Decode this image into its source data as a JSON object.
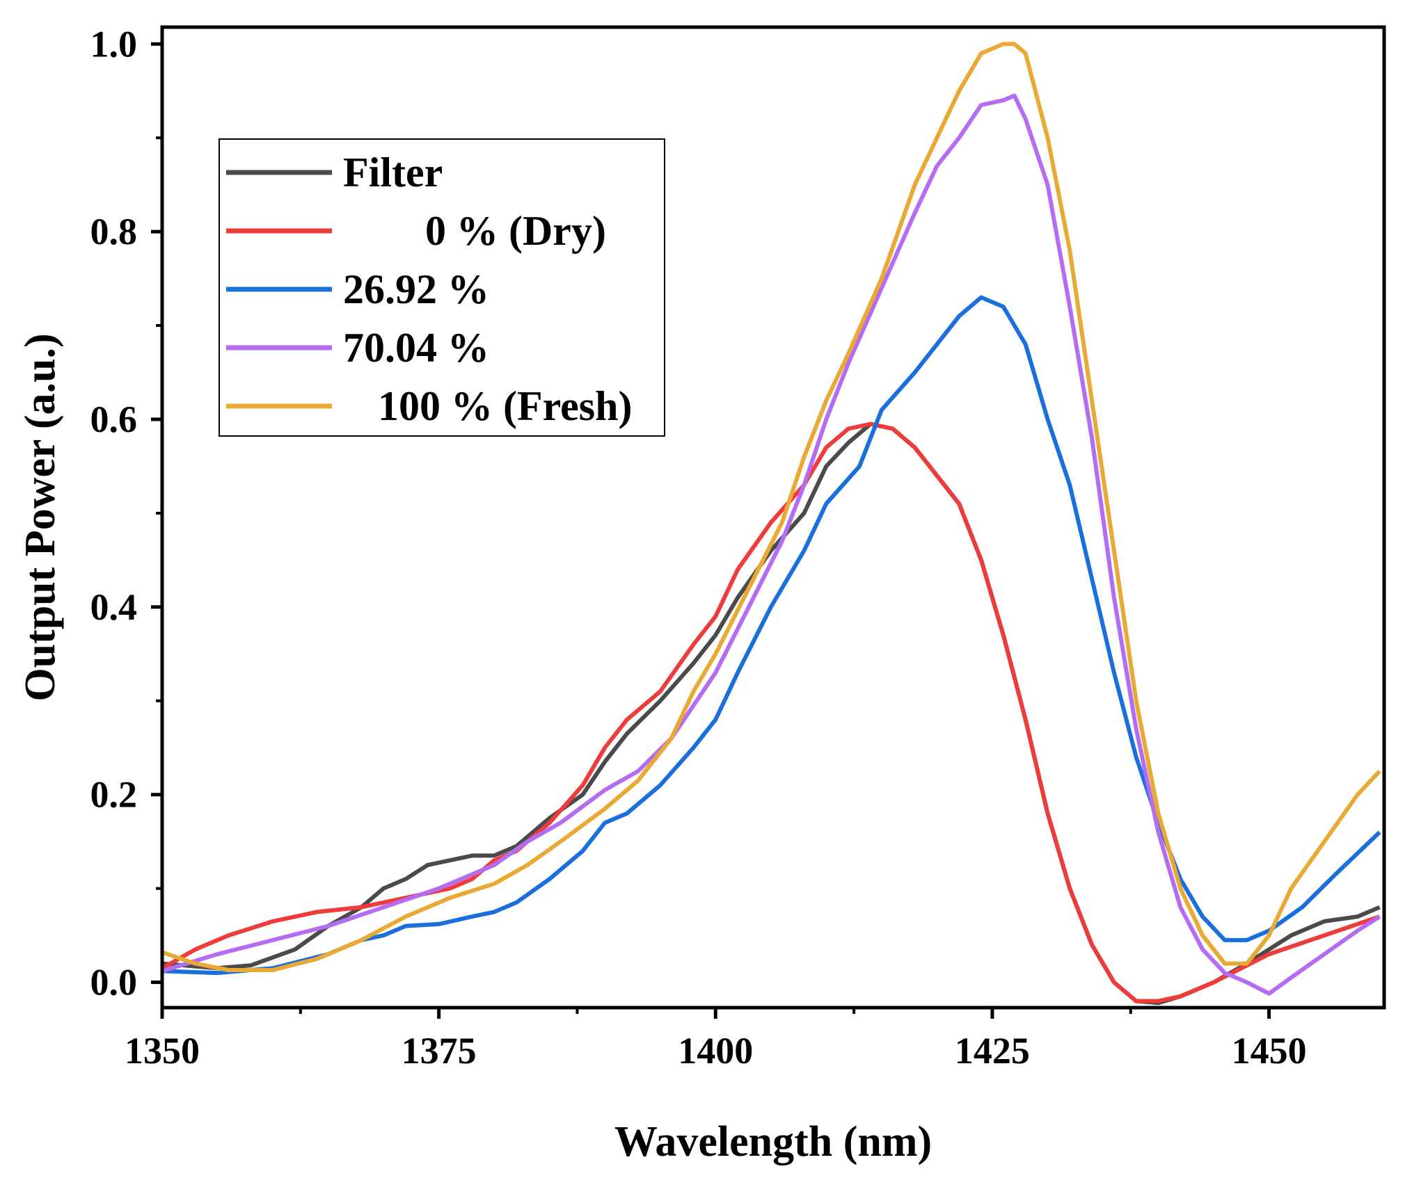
{
  "chart_data": {
    "type": "line",
    "title": "",
    "xlabel": "Wavelength (nm)",
    "ylabel": "Output Power (a.u.)",
    "xlim": [
      1350,
      1460.4
    ],
    "ylim": [
      -0.027,
      1.018
    ],
    "xticks": [
      1350,
      1375,
      1400,
      1425,
      1450
    ],
    "xtick_labels": [
      "1350",
      "1375",
      "1400",
      "1425",
      "1450"
    ],
    "yticks": [
      0.0,
      0.2,
      0.4,
      0.6,
      0.8,
      1.0
    ],
    "ytick_labels": [
      "0.0",
      "0.2",
      "0.4",
      "0.6",
      "0.8",
      "1.0"
    ],
    "grid": false,
    "legend_position": "upper-left",
    "series": [
      {
        "name": "Filter",
        "color": "#4a4a4a",
        "x": [
          1350,
          1355,
          1358,
          1362,
          1365,
          1368,
          1370,
          1372,
          1374,
          1376,
          1378,
          1380,
          1382,
          1385,
          1388,
          1390,
          1392,
          1395,
          1398,
          1400,
          1402,
          1405,
          1408,
          1410,
          1412,
          1414,
          1416,
          1418,
          1420,
          1422,
          1424,
          1426,
          1428,
          1430,
          1432,
          1434,
          1436,
          1438,
          1440,
          1442,
          1445,
          1448,
          1450,
          1452,
          1455,
          1458,
          1460
        ],
        "y": [
          0.02,
          0.015,
          0.018,
          0.035,
          0.06,
          0.08,
          0.1,
          0.11,
          0.125,
          0.13,
          0.135,
          0.135,
          0.145,
          0.175,
          0.2,
          0.235,
          0.265,
          0.3,
          0.34,
          0.37,
          0.41,
          0.46,
          0.5,
          0.55,
          0.575,
          0.595,
          0.59,
          0.57,
          0.54,
          0.51,
          0.45,
          0.37,
          0.28,
          0.18,
          0.1,
          0.04,
          0.0,
          -0.02,
          -0.022,
          -0.015,
          0.0,
          0.02,
          0.035,
          0.05,
          0.065,
          0.07,
          0.08
        ]
      },
      {
        "name": "0 % (Dry)",
        "color": "#ee3b3b",
        "x": [
          1350,
          1353,
          1356,
          1360,
          1364,
          1368,
          1372,
          1376,
          1378,
          1380,
          1382,
          1385,
          1388,
          1390,
          1392,
          1395,
          1398,
          1400,
          1402,
          1405,
          1408,
          1410,
          1412,
          1414,
          1416,
          1418,
          1420,
          1422,
          1424,
          1426,
          1428,
          1430,
          1432,
          1434,
          1436,
          1438,
          1440,
          1442,
          1445,
          1450,
          1455,
          1460
        ],
        "y": [
          0.015,
          0.035,
          0.05,
          0.065,
          0.075,
          0.08,
          0.09,
          0.1,
          0.11,
          0.13,
          0.14,
          0.17,
          0.21,
          0.25,
          0.28,
          0.31,
          0.36,
          0.39,
          0.44,
          0.49,
          0.53,
          0.57,
          0.59,
          0.595,
          0.59,
          0.57,
          0.54,
          0.51,
          0.45,
          0.37,
          0.28,
          0.18,
          0.1,
          0.04,
          0.0,
          -0.02,
          -0.02,
          -0.015,
          0.0,
          0.03,
          0.05,
          0.07
        ]
      },
      {
        "name": "26.92 %",
        "color": "#1a6fdc",
        "x": [
          1350,
          1355,
          1360,
          1365,
          1368,
          1370,
          1372,
          1375,
          1378,
          1380,
          1382,
          1385,
          1388,
          1390,
          1392,
          1395,
          1398,
          1400,
          1402,
          1405,
          1408,
          1410,
          1413,
          1415,
          1418,
          1420,
          1422,
          1424,
          1426,
          1428,
          1430,
          1432,
          1434,
          1436,
          1438,
          1440,
          1442,
          1444,
          1446,
          1448,
          1450,
          1453,
          1456,
          1460
        ],
        "y": [
          0.012,
          0.01,
          0.015,
          0.03,
          0.045,
          0.05,
          0.06,
          0.062,
          0.07,
          0.075,
          0.085,
          0.11,
          0.14,
          0.17,
          0.18,
          0.21,
          0.25,
          0.28,
          0.33,
          0.4,
          0.46,
          0.51,
          0.55,
          0.61,
          0.65,
          0.68,
          0.71,
          0.73,
          0.72,
          0.68,
          0.6,
          0.53,
          0.43,
          0.33,
          0.24,
          0.17,
          0.11,
          0.07,
          0.045,
          0.045,
          0.055,
          0.08,
          0.115,
          0.16
        ]
      },
      {
        "name": "70.04 %",
        "color": "#b46cf2",
        "x": [
          1350,
          1355,
          1360,
          1365,
          1370,
          1375,
          1380,
          1383,
          1386,
          1390,
          1393,
          1396,
          1400,
          1403,
          1406,
          1408,
          1410,
          1412,
          1415,
          1418,
          1420,
          1422,
          1424,
          1426,
          1427,
          1428,
          1430,
          1432,
          1434,
          1436,
          1438,
          1440,
          1442,
          1444,
          1446,
          1448,
          1450,
          1452,
          1455,
          1458,
          1460
        ],
        "y": [
          0.012,
          0.03,
          0.045,
          0.06,
          0.08,
          0.1,
          0.125,
          0.15,
          0.17,
          0.205,
          0.225,
          0.26,
          0.33,
          0.4,
          0.47,
          0.53,
          0.6,
          0.66,
          0.74,
          0.82,
          0.87,
          0.9,
          0.935,
          0.94,
          0.945,
          0.92,
          0.85,
          0.72,
          0.58,
          0.41,
          0.27,
          0.16,
          0.08,
          0.035,
          0.01,
          0.0,
          -0.012,
          0.005,
          0.03,
          0.055,
          0.07
        ]
      },
      {
        "name": "100 % (Fresh)",
        "color": "#e9a935",
        "x": [
          1350,
          1353,
          1356,
          1360,
          1364,
          1368,
          1372,
          1376,
          1380,
          1383,
          1386,
          1390,
          1393,
          1396,
          1398,
          1400,
          1403,
          1406,
          1408,
          1410,
          1412,
          1415,
          1418,
          1420,
          1422,
          1424,
          1426,
          1427,
          1428,
          1430,
          1432,
          1434,
          1436,
          1438,
          1440,
          1442,
          1444,
          1446,
          1448,
          1450,
          1452,
          1455,
          1458,
          1460
        ],
        "y": [
          0.032,
          0.02,
          0.013,
          0.013,
          0.025,
          0.045,
          0.07,
          0.09,
          0.105,
          0.125,
          0.15,
          0.185,
          0.215,
          0.26,
          0.31,
          0.35,
          0.42,
          0.49,
          0.56,
          0.62,
          0.67,
          0.75,
          0.85,
          0.9,
          0.95,
          0.99,
          1.0,
          1.0,
          0.99,
          0.9,
          0.78,
          0.62,
          0.46,
          0.3,
          0.18,
          0.1,
          0.05,
          0.02,
          0.02,
          0.05,
          0.1,
          0.15,
          0.2,
          0.225
        ]
      }
    ]
  }
}
